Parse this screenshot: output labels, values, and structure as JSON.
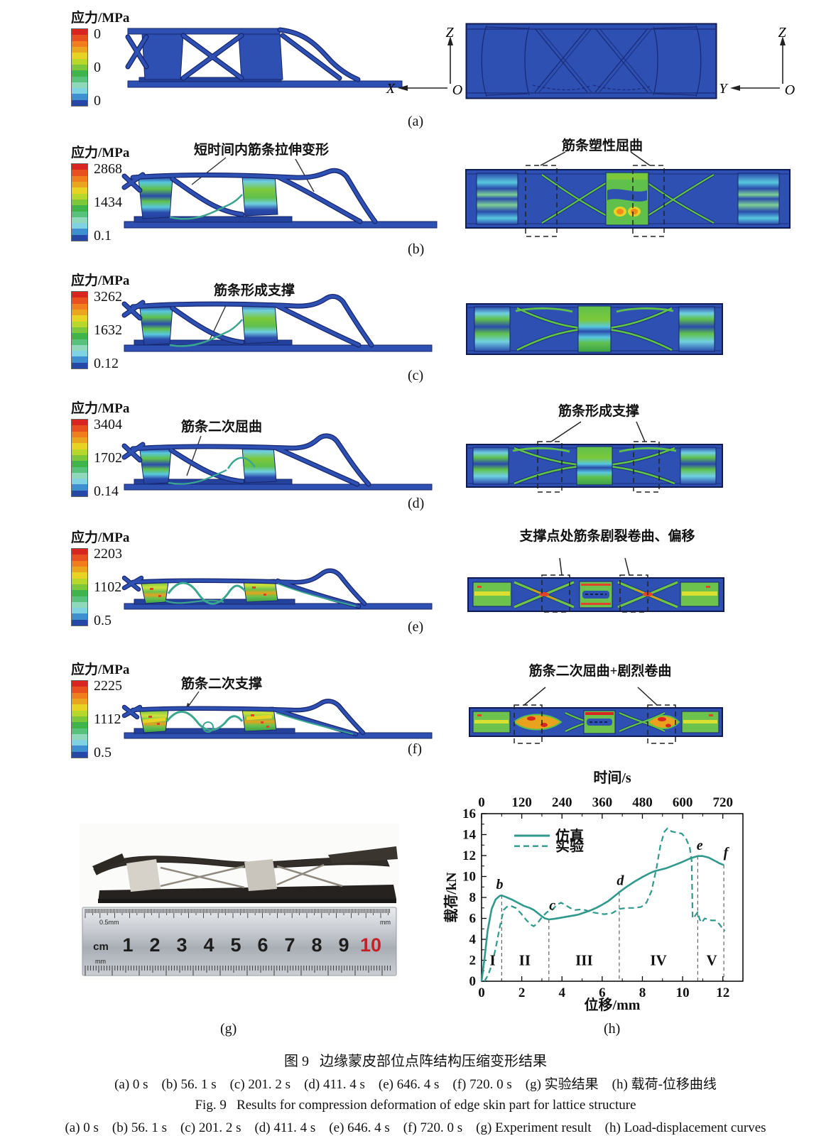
{
  "rows": [
    {
      "panel_label": "(a)",
      "colorbar": {
        "title": "应力/MPa",
        "top": "0",
        "mid": "0",
        "bottom": "0"
      },
      "left_annotation": "",
      "right_annotation": ""
    },
    {
      "panel_label": "(b)",
      "colorbar": {
        "title": "应力/MPa",
        "top": "2868",
        "mid": "1434",
        "bottom": "0.1"
      },
      "left_annotation": "短时间内筋条拉伸变形",
      "right_annotation": "筋条塑性屈曲"
    },
    {
      "panel_label": "(c)",
      "colorbar": {
        "title": "应力/MPa",
        "top": "3262",
        "mid": "1632",
        "bottom": "0.12"
      },
      "left_annotation": "筋条形成支撑",
      "right_annotation": ""
    },
    {
      "panel_label": "(d)",
      "colorbar": {
        "title": "应力/MPa",
        "top": "3404",
        "mid": "1702",
        "bottom": "0.14"
      },
      "left_annotation": "筋条二次屈曲",
      "right_annotation": "筋条形成支撑"
    },
    {
      "panel_label": "(e)",
      "colorbar": {
        "title": "应力/MPa",
        "top": "2203",
        "mid": "1102",
        "bottom": "0.5"
      },
      "left_annotation": "",
      "right_annotation": "支撑点处筋条剧裂卷曲、偏移"
    },
    {
      "panel_label": "(f)",
      "colorbar": {
        "title": "应力/MPa",
        "top": "2225",
        "mid": "1112",
        "bottom": "0.5"
      },
      "left_annotation": "筋条二次支撑",
      "right_annotation": "筋条二次屈曲+剧烈卷曲"
    }
  ],
  "axes": {
    "z": "Z",
    "x": "X",
    "y": "Y",
    "o": "O"
  },
  "colorbar_palette": [
    "#d8251f",
    "#e8501f",
    "#f07d1e",
    "#eaa51e",
    "#e6d324",
    "#b8d72b",
    "#7cc83a",
    "#3eb44a",
    "#58c27c",
    "#8fd8bc",
    "#7fd2e2",
    "#3e8fd0",
    "#2547a5"
  ],
  "fem_blue": "#2d50b2",
  "photo": {
    "panel_label": "(g)",
    "ruler": {
      "fine_label": "0.5mm",
      "unit_cm": "cm",
      "unit_mm": "mm",
      "unit_mm_right": "mm",
      "numbers": [
        "1",
        "2",
        "3",
        "4",
        "5",
        "6",
        "7",
        "8",
        "9",
        "10"
      ],
      "highlight_number": "10",
      "highlight_color": "#c42127"
    }
  },
  "chart_data": {
    "type": "line",
    "panel_label": "(h)",
    "top_axis_label": "时间/s",
    "top_ticks": [
      0,
      120,
      240,
      360,
      480,
      600,
      720
    ],
    "xlabel": "位移/mm",
    "ylabel": "载荷/kN",
    "xlim": [
      0,
      13
    ],
    "ylim": [
      0,
      16
    ],
    "x_ticks": [
      0,
      2,
      4,
      6,
      8,
      10,
      12
    ],
    "y_ticks": [
      0,
      2,
      4,
      6,
      8,
      10,
      12,
      14,
      16
    ],
    "time_per_mm": 60,
    "accent_color": "#2f998c",
    "legend": [
      {
        "name": "仿真",
        "style": "solid"
      },
      {
        "name": "实验",
        "style": "dashed"
      }
    ],
    "series": [
      {
        "name": "仿真",
        "style": "solid",
        "points": [
          [
            0,
            0
          ],
          [
            0.15,
            2.2
          ],
          [
            0.3,
            4.8
          ],
          [
            0.5,
            6.9
          ],
          [
            0.7,
            7.8
          ],
          [
            0.9,
            8.15
          ],
          [
            1.0,
            8.2
          ],
          [
            1.2,
            8.05
          ],
          [
            1.5,
            7.8
          ],
          [
            1.8,
            7.5
          ],
          [
            2.1,
            7.2
          ],
          [
            2.4,
            7.0
          ],
          [
            2.6,
            6.8
          ],
          [
            2.8,
            6.5
          ],
          [
            3.0,
            6.2
          ],
          [
            3.15,
            6.0
          ],
          [
            3.35,
            5.9
          ],
          [
            3.6,
            5.95
          ],
          [
            3.9,
            6.05
          ],
          [
            4.2,
            6.15
          ],
          [
            4.5,
            6.25
          ],
          [
            4.8,
            6.35
          ],
          [
            5.1,
            6.55
          ],
          [
            5.4,
            6.75
          ],
          [
            5.7,
            7.0
          ],
          [
            6.0,
            7.3
          ],
          [
            6.3,
            7.65
          ],
          [
            6.6,
            8.1
          ],
          [
            6.85,
            8.5
          ],
          [
            7.2,
            9.0
          ],
          [
            7.6,
            9.5
          ],
          [
            8.0,
            9.95
          ],
          [
            8.35,
            10.3
          ],
          [
            8.6,
            10.5
          ],
          [
            8.9,
            10.65
          ],
          [
            9.2,
            10.8
          ],
          [
            9.6,
            11.1
          ],
          [
            10.0,
            11.4
          ],
          [
            10.4,
            11.75
          ],
          [
            10.75,
            11.95
          ],
          [
            11.0,
            11.95
          ],
          [
            11.3,
            11.8
          ],
          [
            11.6,
            11.5
          ],
          [
            11.85,
            11.25
          ],
          [
            12.05,
            11.1
          ]
        ]
      },
      {
        "name": "实验",
        "style": "dashed",
        "points": [
          [
            0.15,
            0
          ],
          [
            0.35,
            0.7
          ],
          [
            0.55,
            1.8
          ],
          [
            0.75,
            3.6
          ],
          [
            0.95,
            5.6
          ],
          [
            1.1,
            6.8
          ],
          [
            1.25,
            7.1
          ],
          [
            1.45,
            7.2
          ],
          [
            1.7,
            7.0
          ],
          [
            1.95,
            6.5
          ],
          [
            2.2,
            5.9
          ],
          [
            2.45,
            5.4
          ],
          [
            2.6,
            5.25
          ],
          [
            2.8,
            5.6
          ],
          [
            3.0,
            6.1
          ],
          [
            3.25,
            6.6
          ],
          [
            3.5,
            6.8
          ],
          [
            3.75,
            7.3
          ],
          [
            3.95,
            7.5
          ],
          [
            4.15,
            7.3
          ],
          [
            4.4,
            7.0
          ],
          [
            4.65,
            6.8
          ],
          [
            4.9,
            6.85
          ],
          [
            5.15,
            6.8
          ],
          [
            5.45,
            6.6
          ],
          [
            5.75,
            6.5
          ],
          [
            6.1,
            6.4
          ],
          [
            6.5,
            6.5
          ],
          [
            6.85,
            6.9
          ],
          [
            7.2,
            7.0
          ],
          [
            7.6,
            7.0
          ],
          [
            7.95,
            7.1
          ],
          [
            8.2,
            7.5
          ],
          [
            8.45,
            8.6
          ],
          [
            8.7,
            10.8
          ],
          [
            8.9,
            13.0
          ],
          [
            9.1,
            14.3
          ],
          [
            9.25,
            14.6
          ],
          [
            9.45,
            14.3
          ],
          [
            9.7,
            14.2
          ],
          [
            9.95,
            14.1
          ],
          [
            10.15,
            13.7
          ],
          [
            10.35,
            12.8
          ],
          [
            10.45,
            11.5
          ],
          [
            10.5,
            6.0
          ],
          [
            10.6,
            6.2
          ],
          [
            10.75,
            6.6
          ],
          [
            10.85,
            5.9
          ],
          [
            10.95,
            5.6
          ],
          [
            11.1,
            6.0
          ],
          [
            11.25,
            5.9
          ],
          [
            11.45,
            5.8
          ],
          [
            11.65,
            5.8
          ],
          [
            11.85,
            5.4
          ],
          [
            12.0,
            5.0
          ],
          [
            12.1,
            4.8
          ]
        ]
      }
    ],
    "guides": [
      {
        "x": 1.0,
        "label": "b"
      },
      {
        "x": 3.35,
        "label": "c"
      },
      {
        "x": 6.85,
        "label": "d"
      },
      {
        "x": 10.75,
        "label": "e"
      },
      {
        "x": 12.05,
        "label": "f"
      }
    ],
    "regions": [
      {
        "label": "I",
        "x": 0.55,
        "y": 2
      },
      {
        "label": "II",
        "x": 2.15,
        "y": 2
      },
      {
        "label": "III",
        "x": 5.1,
        "y": 2
      },
      {
        "label": "IV",
        "x": 8.8,
        "y": 2
      },
      {
        "label": "V",
        "x": 11.45,
        "y": 2
      }
    ],
    "point_labels": [
      {
        "label": "b",
        "x": 0.9,
        "y": 8.8
      },
      {
        "label": "c",
        "x": 3.52,
        "y": 6.8
      },
      {
        "label": "d",
        "x": 6.9,
        "y": 9.2
      },
      {
        "label": "e",
        "x": 10.85,
        "y": 12.55
      },
      {
        "label": "f",
        "x": 12.15,
        "y": 11.85
      }
    ]
  },
  "captions": {
    "line1": "图 9   边缘蒙皮部位点阵结构压缩变形结果",
    "line2": "(a) 0 s    (b) 56. 1 s    (c) 201. 2 s    (d) 411. 4 s    (e) 646. 4 s    (f) 720. 0 s    (g) 实验结果    (h) 载荷-位移曲线",
    "line3": "Fig. 9   Results for compression deformation of edge skin part for lattice structure",
    "line4": "(a) 0 s    (b) 56. 1 s    (c) 201. 2 s    (d) 411. 4 s    (e) 646. 4 s    (f) 720. 0 s    (g) Experiment result    (h) Load-displacement curves"
  }
}
